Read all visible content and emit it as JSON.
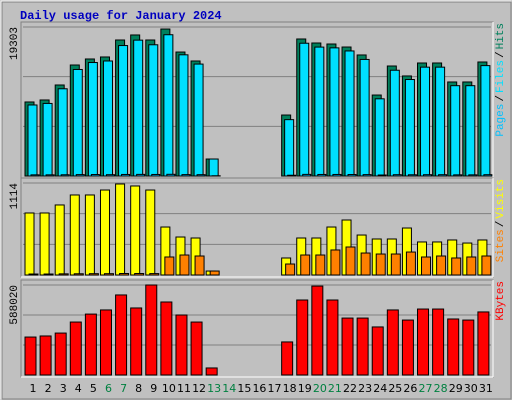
{
  "chart_data": [
    {
      "type": "bar",
      "title": "Daily usage for January 2024",
      "legend_separator": "/",
      "ylim": [
        0,
        19303
      ],
      "yticks": [
        19303
      ],
      "series": [
        {
          "name": "Pages",
          "color": "#00c0ff",
          "values": [
            150,
            150,
            160,
            180,
            190,
            170,
            200,
            210,
            200,
            220,
            180,
            170,
            30,
            0,
            0,
            0,
            0,
            100,
            210,
            200,
            200,
            190,
            180,
            130,
            170,
            160,
            170,
            170,
            150,
            150,
            170
          ]
        },
        {
          "name": "Files",
          "color": "#00e0ff",
          "values": [
            9200,
            9400,
            11300,
            13800,
            14700,
            14900,
            16900,
            17600,
            17000,
            18300,
            15700,
            14500,
            2200,
            0,
            0,
            0,
            0,
            7300,
            17200,
            16700,
            16600,
            16200,
            15100,
            10000,
            13700,
            12500,
            14100,
            14100,
            11700,
            11700,
            14300
          ]
        },
        {
          "name": "Hits",
          "color": "#00805c",
          "values": [
            9590,
            9850,
            11790,
            14380,
            15160,
            15420,
            17620,
            18270,
            17620,
            19040,
            16060,
            14900,
            2200,
            0,
            0,
            0,
            0,
            7900,
            17750,
            17230,
            17100,
            16710,
            15680,
            10490,
            14250,
            12960,
            14640,
            14640,
            12180,
            12180,
            14770
          ]
        }
      ]
    },
    {
      "type": "bar",
      "legend_separator": "/",
      "ylim": [
        0,
        1114
      ],
      "yticks": [
        1114
      ],
      "series": [
        {
          "name": "Sites",
          "color": "#ff8000",
          "values": [
            12,
            12,
            14,
            15,
            16,
            16,
            18,
            18,
            17,
            218,
            242,
            230,
            48,
            0,
            0,
            0,
            0,
            133,
            242,
            242,
            303,
            339,
            266,
            254,
            254,
            278,
            218,
            230,
            206,
            218,
            230
          ]
        },
        {
          "name": "Visits",
          "color": "#ffff00",
          "values": [
            751,
            751,
            848,
            969,
            969,
            1029,
            1102,
            1078,
            1029,
            581,
            460,
            448,
            48,
            0,
            0,
            0,
            0,
            206,
            448,
            448,
            581,
            666,
            484,
            436,
            436,
            569,
            400,
            400,
            424,
            387,
            424
          ]
        }
      ]
    },
    {
      "type": "bar",
      "ylim": [
        0,
        588020
      ],
      "yticks": [
        588020
      ],
      "categories": [
        "1",
        "2",
        "3",
        "4",
        "5",
        "6",
        "7",
        "8",
        "9",
        "10",
        "11",
        "12",
        "13",
        "14",
        "15",
        "16",
        "17",
        "18",
        "19",
        "20",
        "21",
        "22",
        "23",
        "24",
        "25",
        "26",
        "27",
        "28",
        "29",
        "30",
        "31"
      ],
      "category_colors": [
        "#000000",
        "#000000",
        "#000000",
        "#000000",
        "#000000",
        "#008040",
        "#008040",
        "#000000",
        "#000000",
        "#000000",
        "#000000",
        "#000000",
        "#008040",
        "#008040",
        "#000000",
        "#000000",
        "#000000",
        "#000000",
        "#000000",
        "#008040",
        "#008040",
        "#000000",
        "#000000",
        "#000000",
        "#000000",
        "#000000",
        "#008040",
        "#008040",
        "#000000",
        "#000000",
        "#000000"
      ],
      "series": [
        {
          "name": "KBytes",
          "color": "#ff0000",
          "values": [
            248000,
            255000,
            274000,
            346000,
            398000,
            425000,
            523000,
            438000,
            588020,
            477000,
            392000,
            346000,
            46000,
            0,
            0,
            0,
            0,
            216000,
            490000,
            581000,
            490000,
            372000,
            372000,
            314000,
            425000,
            359000,
            431000,
            431000,
            366000,
            359000,
            412000
          ]
        }
      ]
    }
  ]
}
